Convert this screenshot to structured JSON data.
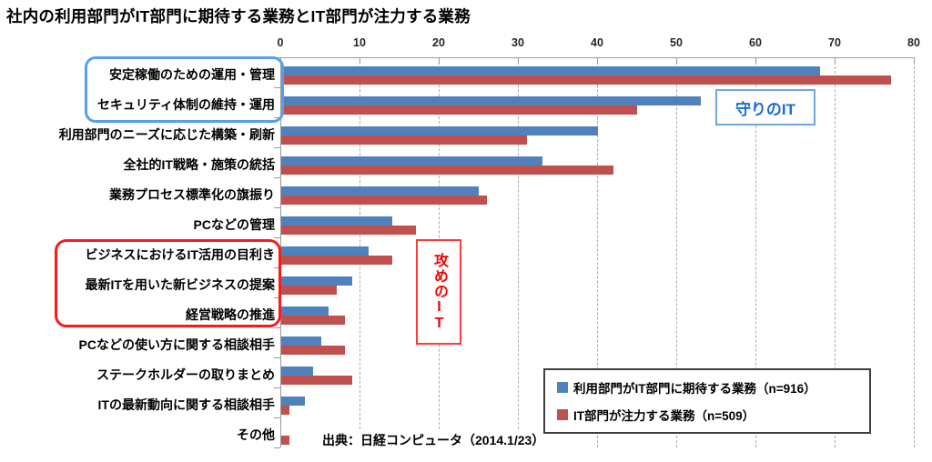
{
  "title": "社内の利用部門がIT部門に期待する業務とIT部門が注力する業務",
  "source": "出典：日経コンピュータ（2014.1/23）",
  "annotations": {
    "defense_label": "守りのIT",
    "offense_label": "攻めのIT"
  },
  "colors": {
    "series_expected": "#4F81BD",
    "series_focus": "#C0504D",
    "defense_accent": "#1B6CD9",
    "offense_accent": "#F40000",
    "axis": "#9A9A9A",
    "gridline": "#ABABAB"
  },
  "chart_data": {
    "type": "bar",
    "orientation": "horizontal",
    "title": "社内の利用部門がIT部門に期待する業務とIT部門が注力する業務",
    "categories": [
      "安定稼働のための運用・管理",
      "セキュリティ体制の維持・運用",
      "利用部門のニーズに応じた構築・刷新",
      "全社的IT戦略・施策の統括",
      "業務プロセス標準化の旗振り",
      "PCなどの管理",
      "ビジネスにおけるIT活用の目利き",
      "最新ITを用いた新ビジネスの提案",
      "経営戦略の推進",
      "PCなどの使い方に関する相談相手",
      "ステークホルダーの取りまとめ",
      "ITの最新動向に関する相談相手",
      "その他"
    ],
    "series": [
      {
        "name": "利用部門がIT部門に期待する業務（n=916）",
        "color": "#4F81BD",
        "values": [
          68,
          53,
          40,
          33,
          25,
          14,
          11,
          9,
          6,
          5,
          4,
          3,
          0
        ]
      },
      {
        "name": "IT部門が注力する業務（n=509）",
        "color": "#C0504D",
        "values": [
          77,
          45,
          31,
          42,
          26,
          17,
          14,
          7,
          8,
          8,
          9,
          1,
          1
        ]
      }
    ],
    "xlim": [
      0,
      80
    ],
    "xticks": [
      0,
      10,
      20,
      30,
      40,
      50,
      60,
      70,
      80
    ],
    "grid": "vertical-dashed",
    "legend_position": "bottom-right",
    "group_annotations": [
      {
        "label": "守りのIT",
        "categories_spanned": [
          0,
          1
        ],
        "color": "#1B6CD9"
      },
      {
        "label": "攻めのIT",
        "categories_spanned": [
          6,
          8
        ],
        "color": "#F40000"
      }
    ]
  }
}
